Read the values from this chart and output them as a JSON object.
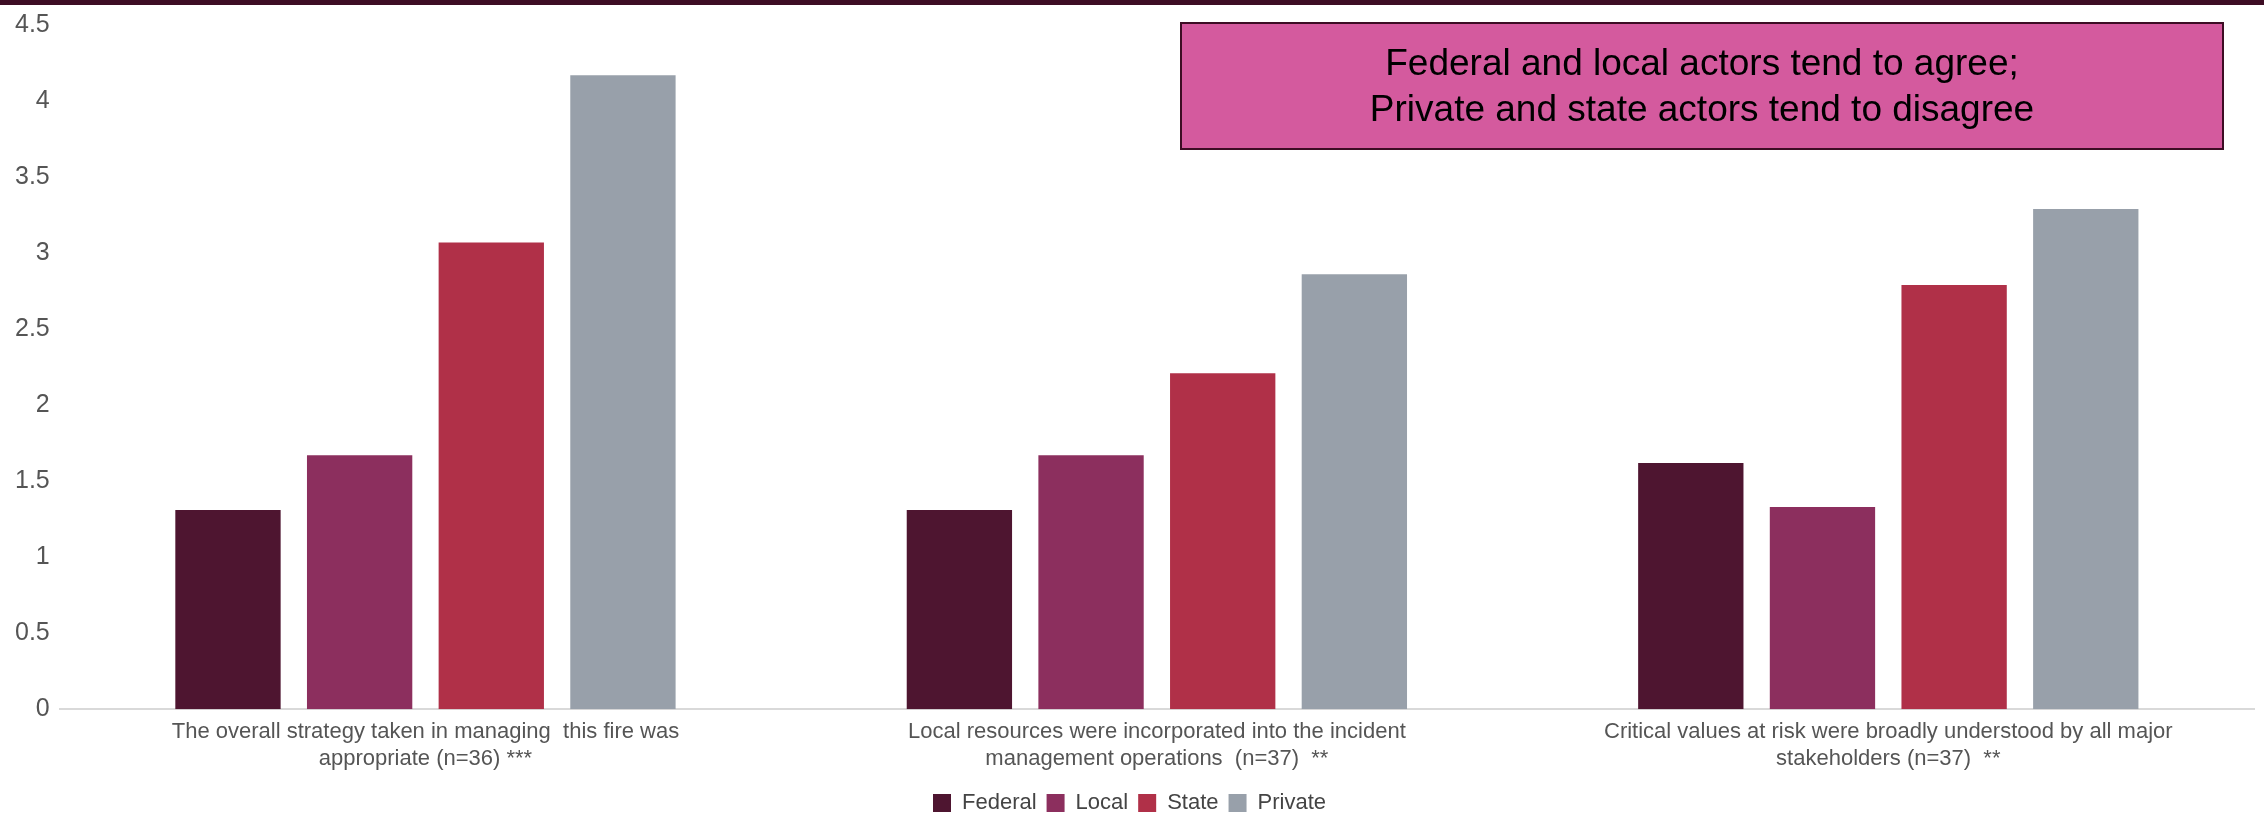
{
  "chart_data": {
    "type": "bar",
    "categories": [
      "The overall strategy taken in managing  this fire was appropriate (n=36) ***",
      "Local resources were incorporated into the incident management operations  (n=37)  **",
      "Critical values at risk were broadly understood by all major stakeholders (n=37)  **"
    ],
    "series": [
      {
        "name": "Federal",
        "color": "#4e1530",
        "values": [
          1.31,
          1.31,
          1.62
        ]
      },
      {
        "name": "Local",
        "color": "#8c2f5e",
        "values": [
          1.67,
          1.67,
          1.33
        ]
      },
      {
        "name": "State",
        "color": "#b03048",
        "values": [
          3.07,
          2.21,
          2.79
        ]
      },
      {
        "name": "Private",
        "color": "#98a0aa",
        "values": [
          4.17,
          2.86,
          3.29
        ]
      }
    ],
    "ylim": [
      0,
      4.5
    ],
    "yticks": [
      0,
      0.5,
      1,
      1.5,
      2,
      2.5,
      3,
      3.5,
      4,
      4.5
    ],
    "grid": false,
    "legend": "bottom",
    "annotations": [
      "Federal and local actors tend to agree;\nPrivate and state actors tend to disagree"
    ]
  }
}
